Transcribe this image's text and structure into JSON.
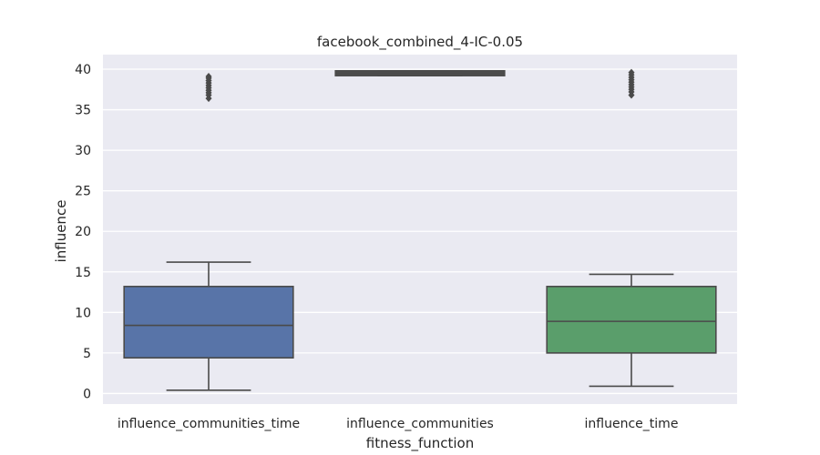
{
  "chart_data": {
    "type": "box",
    "title": "facebook_combined_4-IC-0.05",
    "xlabel": "fitness_function",
    "ylabel": "influence",
    "ylim": [
      -1.3,
      41.8
    ],
    "yticks": [
      0,
      5,
      10,
      15,
      20,
      25,
      30,
      35,
      40
    ],
    "grid": true,
    "categories": [
      "influence_communities_time",
      "influence_communities",
      "influence_time"
    ],
    "colors": [
      "#5874a8",
      "#4e4e4e",
      "#5a9e6b"
    ],
    "boxes": [
      {
        "name": "influence_communities_time",
        "whisker_low": 0.4,
        "q1": 4.4,
        "median": 8.4,
        "q3": 13.2,
        "whisker_high": 16.2,
        "outliers": [
          36.4,
          36.8,
          37.1,
          37.4,
          37.7,
          38.0,
          38.3,
          38.6,
          38.9,
          39.1
        ]
      },
      {
        "name": "influence_communities",
        "whisker_low": 39.2,
        "q1": 39.2,
        "median": 39.5,
        "q3": 39.8,
        "whisker_high": 39.8,
        "outliers": []
      },
      {
        "name": "influence_time",
        "whisker_low": 0.9,
        "q1": 5.0,
        "median": 8.9,
        "q3": 13.2,
        "whisker_high": 14.7,
        "outliers": [
          36.8,
          37.2,
          37.5,
          37.8,
          38.1,
          38.4,
          38.7,
          39.0,
          39.3,
          39.6
        ]
      }
    ]
  }
}
